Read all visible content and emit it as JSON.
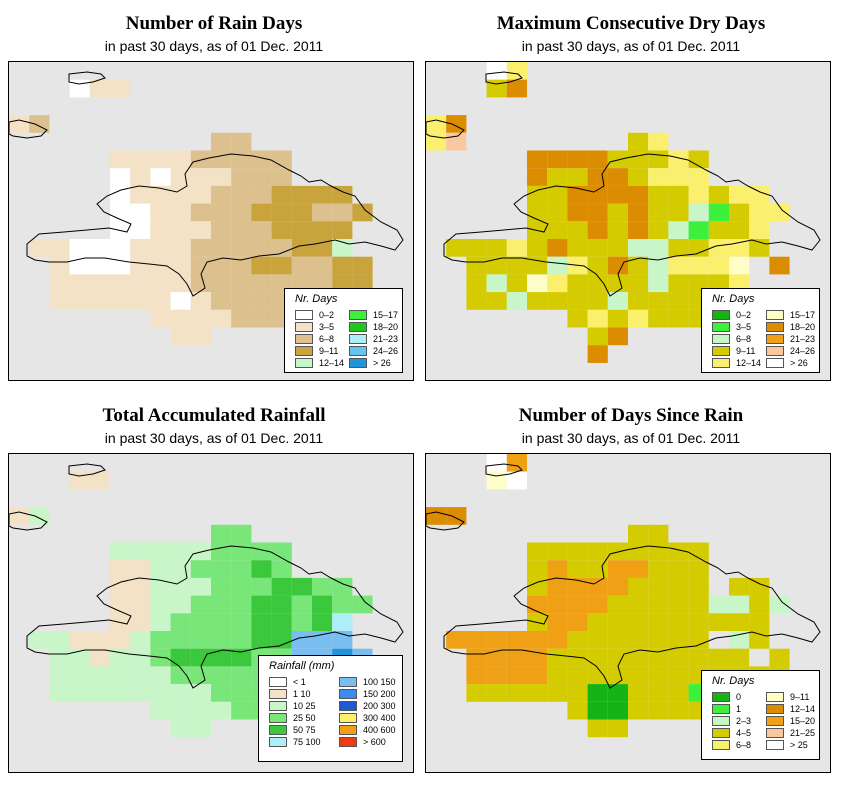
{
  "panels": [
    {
      "id": "rain-days",
      "title": "Number of Rain Days",
      "subtitle": "in past 30 days, as of  01 Dec. 2011",
      "legend": {
        "title": "Nr. Days",
        "items": [
          {
            "label": "0–2",
            "color": "#ffffff"
          },
          {
            "label": "3–5",
            "color": "#f3e2c6"
          },
          {
            "label": "6–8",
            "color": "#dcc08e"
          },
          {
            "label": "9–11",
            "color": "#c9a43c"
          },
          {
            "label": "12–14",
            "color": "#c8f6c8"
          },
          {
            "label": "15–17",
            "color": "#3cf03c"
          },
          {
            "label": "18–20",
            "color": "#1ec81e"
          },
          {
            "label": "21–23",
            "color": "#aeeef6"
          },
          {
            "label": "24–26",
            "color": "#66c2f0"
          },
          {
            "label": "> 26",
            "color": "#1e96dc"
          }
        ]
      },
      "palette": [
        "#ffffff",
        "#f3e2c6",
        "#dcc08e",
        "#c9a43c",
        "#c8f6c8"
      ],
      "grid": [
        "..................",
        "...011............",
        "..................",
        "12................",
        "..........22......",
        ".....111122222....",
        ".....010111222....",
        ".....011112223333.",
        ".....0011222333223",
        ".....001112223333.",
        ".1100011122222334.",
        "..1000111222332233",
        "..1111111222222233",
        "..1111110122222...",
        ".......1111222....",
        "........11........",
        "...................",
        "..................."
      ]
    },
    {
      "id": "dry-days",
      "title": "Maximum Consecutive Dry Days",
      "subtitle": "in past 30 days, as of  01 Dec. 2011",
      "legend": {
        "title": "Nr. Days",
        "items": [
          {
            "label": "0–2",
            "color": "#14b414"
          },
          {
            "label": "3–5",
            "color": "#3cf03c"
          },
          {
            "label": "6–8",
            "color": "#c8f6c8"
          },
          {
            "label": "9–11",
            "color": "#d4cc00"
          },
          {
            "label": "12–14",
            "color": "#faf06e"
          },
          {
            "label": "15–17",
            "color": "#fefec8"
          },
          {
            "label": "18–20",
            "color": "#dc8c00"
          },
          {
            "label": "21–23",
            "color": "#f0a014"
          },
          {
            "label": "24–26",
            "color": "#fac8a0"
          },
          {
            "label": "> 26",
            "color": "#ffffff"
          }
        ]
      },
      "palette": [
        "#d4cc00",
        "#faf06e",
        "#dc8c00",
        "#c8f6c8",
        "#3cf03c",
        "#fefec8",
        "#fac8a0",
        "#ffffff"
      ],
      "grid": [
        "...71.............",
        "...02.............",
        "..................",
        "12................",
        "16........01......",
        ".....222200010....",
        ".....200220111....",
        ".....002222001011.",
        ".....0022020034011",
        ".....000202034001.",
        ".0001020003300110.",
        "..00003102031115.2",
        "..03051000030001..",
        "..0030000300001...",
        ".......0101000....",
        "........02........",
        "........2.........",
        "..................."
      ]
    },
    {
      "id": "rainfall",
      "title": "Total Accumulated Rainfall",
      "subtitle": "in past 30 days, as of  01 Dec. 2011",
      "legend": {
        "title": "Rainfall (mm)",
        "items": [
          {
            "label": "< 1",
            "color": "#ffffff"
          },
          {
            "label": "1    10",
            "color": "#f3e2c6"
          },
          {
            "label": "10    25",
            "color": "#c8f6c8"
          },
          {
            "label": "25    50",
            "color": "#78e678"
          },
          {
            "label": "50    75",
            "color": "#3cc83c"
          },
          {
            "label": "75    100",
            "color": "#aeeef6"
          },
          {
            "label": "100    150",
            "color": "#78bef0"
          },
          {
            "label": "150    200",
            "color": "#3c8cf0"
          },
          {
            "label": "200    300",
            "color": "#1e5ad2"
          },
          {
            "label": "300    400",
            "color": "#faf06e"
          },
          {
            "label": "400    600",
            "color": "#f0a014"
          },
          {
            "label": "> 600",
            "color": "#f03c14"
          }
        ]
      },
      "palette": [
        "#ffffff",
        "#f3e2c6",
        "#c8f6c8",
        "#78e678",
        "#3cc83c",
        "#aeeef6",
        "#78bef0",
        "#1e96dc"
      ],
      "grid": [
        "..................",
        "...11.............",
        "..................",
        "12................",
        "..........33......",
        ".....222223333....",
        ".....112233343....",
        ".....112223334433.",
        ".....1122333443433",
        ".....112333344345.",
        ".2211123333344666.",
        "..2212234444336676",
        "..2222223333335555",
        "..2222222233333...",
        ".......2222333....",
        "........22........",
        "...................",
        "..................."
      ]
    },
    {
      "id": "days-since-rain",
      "title": "Number of Days Since Rain",
      "subtitle": "in past 30 days, as of  01 Dec. 2011",
      "legend": {
        "title": "Nr. Days",
        "items": [
          {
            "label": "0",
            "color": "#14b414"
          },
          {
            "label": "1",
            "color": "#3cf03c"
          },
          {
            "label": "2–3",
            "color": "#c8f6c8"
          },
          {
            "label": "4–5",
            "color": "#d4cc00"
          },
          {
            "label": "6–8",
            "color": "#faf06e"
          },
          {
            "label": "9–11",
            "color": "#fefec8"
          },
          {
            "label": "12–14",
            "color": "#dc8c00"
          },
          {
            "label": "15–20",
            "color": "#f0a014"
          },
          {
            "label": "21–25",
            "color": "#fac8a0"
          },
          {
            "label": "> 25",
            "color": "#ffffff"
          }
        ]
      },
      "palette": [
        "#d4cc00",
        "#f0a014",
        "#dc8c00",
        "#c8f6c8",
        "#3cf03c",
        "#14b414",
        "#ffffff",
        "#fefec8"
      ],
      "grid": [
        "...61.............",
        "...76.............",
        "..................",
        "22................",
        "..........00......",
        ".....000000000....",
        ".....010011000....",
        ".....011110000.00.",
        ".....1111000003303",
        ".....011000000000.",
        ".1111110000000.30.",
        "..11110000000000.0",
        "..1111000000000000",
        "..0000005500040...",
        ".......0550000....",
        "........00........",
        "...................",
        "..................."
      ]
    }
  ]
}
